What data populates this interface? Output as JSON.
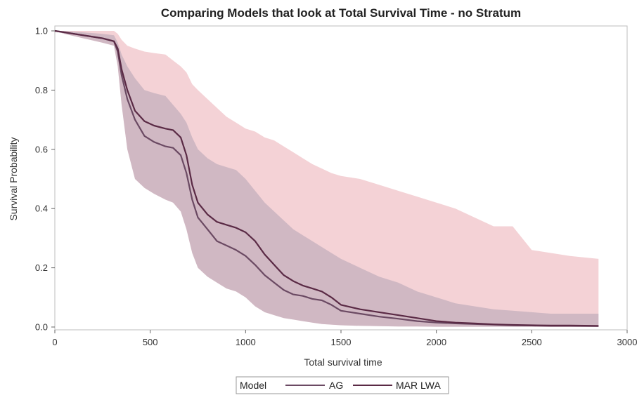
{
  "chart_data": {
    "type": "line",
    "title": "Comparing Models that look at Total Survival Time - no Stratum",
    "xlabel": "Total survival time",
    "ylabel": "Survival Probability",
    "xlim": [
      0,
      3000
    ],
    "ylim": [
      0,
      1.0
    ],
    "x_ticks": [
      "0",
      "500",
      "1000",
      "1500",
      "2000",
      "2500",
      "3000"
    ],
    "y_ticks": [
      "0.0",
      "0.2",
      "0.4",
      "0.6",
      "0.8",
      "1.0"
    ],
    "grid": false,
    "legend": {
      "title": "Model",
      "placement": "bottom-center",
      "entries": [
        "AG",
        "MAR LWA"
      ]
    },
    "colors": {
      "ag_line": "#6b4a63",
      "mar_line": "#5a2a45",
      "ag_band": "#b3a3b5",
      "mar_band": "#e9a5ad"
    },
    "series": [
      {
        "name": "AG",
        "x": [
          0,
          50,
          150,
          250,
          310,
          330,
          350,
          380,
          420,
          470,
          520,
          580,
          620,
          660,
          690,
          720,
          750,
          800,
          850,
          900,
          950,
          1000,
          1050,
          1100,
          1150,
          1200,
          1250,
          1300,
          1350,
          1400,
          1450,
          1500,
          1600,
          1700,
          1800,
          1900,
          2000,
          2100,
          2200,
          2300,
          2400,
          2500,
          2600,
          2700,
          2850
        ],
        "y": [
          1.0,
          0.995,
          0.985,
          0.975,
          0.965,
          0.93,
          0.85,
          0.77,
          0.7,
          0.645,
          0.625,
          0.61,
          0.605,
          0.58,
          0.52,
          0.43,
          0.37,
          0.33,
          0.29,
          0.275,
          0.26,
          0.24,
          0.21,
          0.175,
          0.15,
          0.125,
          0.11,
          0.105,
          0.095,
          0.09,
          0.075,
          0.055,
          0.045,
          0.035,
          0.028,
          0.02,
          0.015,
          0.012,
          0.01,
          0.008,
          0.006,
          0.005,
          0.004,
          0.004,
          0.003
        ],
        "lower": [
          1.0,
          0.99,
          0.975,
          0.96,
          0.95,
          0.88,
          0.75,
          0.6,
          0.5,
          0.47,
          0.45,
          0.43,
          0.42,
          0.39,
          0.33,
          0.25,
          0.2,
          0.17,
          0.15,
          0.13,
          0.12,
          0.1,
          0.07,
          0.05,
          0.04,
          0.03,
          0.025,
          0.02,
          0.015,
          0.01,
          0.008,
          0.006,
          0.004,
          0.003,
          0.002,
          0.002,
          0.001,
          0.001,
          0.001,
          0.001,
          0.001,
          0.001,
          0.0,
          0.0,
          0.0
        ],
        "upper": [
          1.0,
          1.0,
          0.995,
          0.99,
          0.985,
          0.96,
          0.92,
          0.88,
          0.84,
          0.8,
          0.79,
          0.78,
          0.75,
          0.72,
          0.69,
          0.64,
          0.6,
          0.57,
          0.55,
          0.54,
          0.53,
          0.5,
          0.46,
          0.42,
          0.39,
          0.36,
          0.33,
          0.31,
          0.29,
          0.27,
          0.25,
          0.23,
          0.2,
          0.17,
          0.15,
          0.12,
          0.1,
          0.08,
          0.07,
          0.06,
          0.055,
          0.05,
          0.045,
          0.045,
          0.045
        ]
      },
      {
        "name": "MAR LWA",
        "x": [
          0,
          50,
          150,
          250,
          310,
          330,
          350,
          380,
          420,
          470,
          520,
          580,
          620,
          660,
          690,
          720,
          750,
          800,
          850,
          900,
          950,
          1000,
          1050,
          1100,
          1150,
          1200,
          1250,
          1300,
          1350,
          1400,
          1450,
          1500,
          1600,
          1700,
          1800,
          1900,
          2000,
          2100,
          2200,
          2300,
          2400,
          2500,
          2600,
          2700,
          2850
        ],
        "y": [
          1.0,
          0.995,
          0.985,
          0.975,
          0.965,
          0.94,
          0.87,
          0.8,
          0.73,
          0.695,
          0.68,
          0.67,
          0.665,
          0.64,
          0.58,
          0.48,
          0.42,
          0.38,
          0.355,
          0.345,
          0.335,
          0.32,
          0.29,
          0.245,
          0.21,
          0.175,
          0.155,
          0.14,
          0.13,
          0.12,
          0.1,
          0.075,
          0.06,
          0.05,
          0.04,
          0.03,
          0.02,
          0.015,
          0.012,
          0.009,
          0.007,
          0.006,
          0.005,
          0.005,
          0.004
        ],
        "lower": [
          1.0,
          0.99,
          0.975,
          0.96,
          0.95,
          0.88,
          0.75,
          0.6,
          0.5,
          0.47,
          0.45,
          0.43,
          0.42,
          0.39,
          0.33,
          0.25,
          0.2,
          0.17,
          0.15,
          0.13,
          0.12,
          0.1,
          0.07,
          0.05,
          0.04,
          0.03,
          0.025,
          0.02,
          0.015,
          0.01,
          0.008,
          0.006,
          0.004,
          0.003,
          0.002,
          0.002,
          0.001,
          0.001,
          0.001,
          0.001,
          0.001,
          0.001,
          0.0,
          0.0,
          0.0
        ],
        "upper": [
          1.0,
          1.0,
          1.0,
          1.0,
          1.0,
          0.99,
          0.97,
          0.95,
          0.94,
          0.93,
          0.925,
          0.92,
          0.9,
          0.88,
          0.86,
          0.82,
          0.8,
          0.77,
          0.74,
          0.71,
          0.69,
          0.67,
          0.66,
          0.64,
          0.63,
          0.61,
          0.59,
          0.57,
          0.55,
          0.535,
          0.52,
          0.51,
          0.5,
          0.48,
          0.46,
          0.44,
          0.42,
          0.4,
          0.37,
          0.34,
          0.34,
          0.26,
          0.25,
          0.24,
          0.23
        ]
      }
    ]
  }
}
